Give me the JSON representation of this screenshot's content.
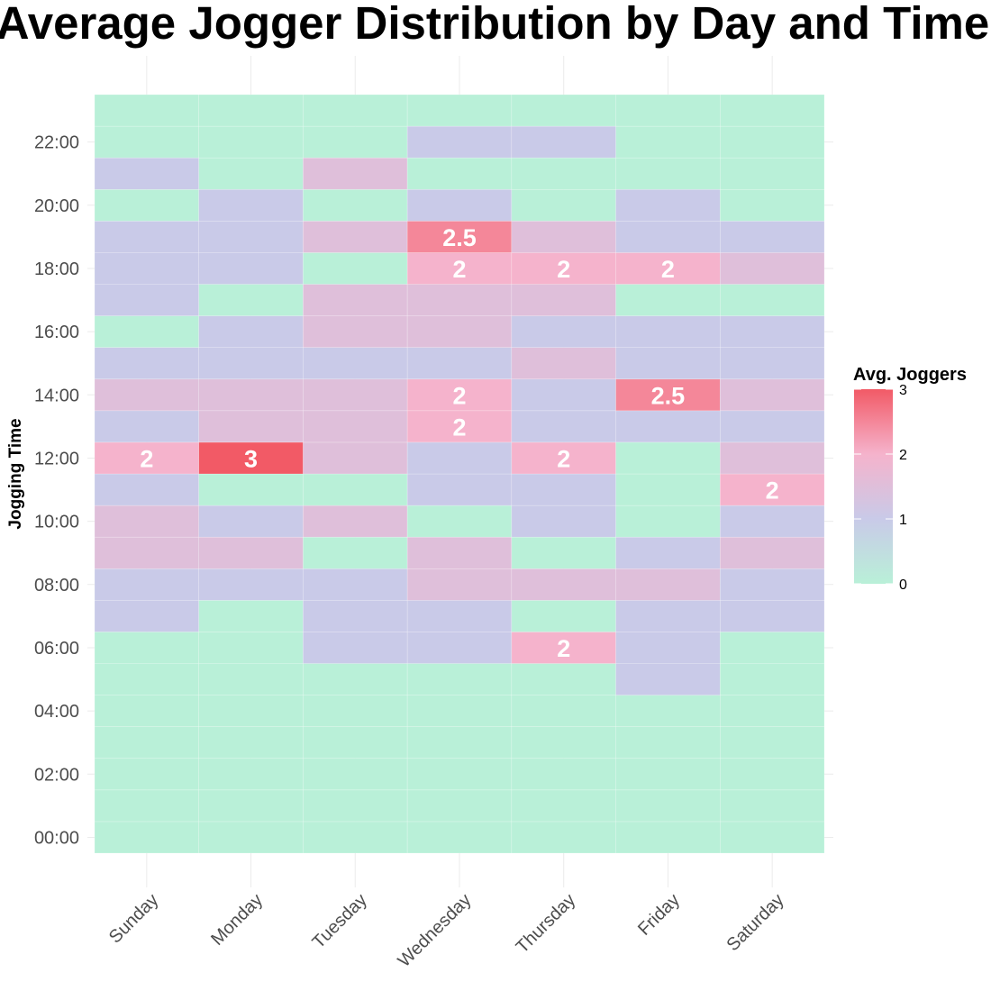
{
  "title": "Average Jogger Distribution by Day and Time",
  "chart_data": {
    "type": "heatmap",
    "title": "Average Jogger Distribution by Day and Time",
    "xlabel": "",
    "ylabel": "Jogging Time",
    "x_categories": [
      "Sunday",
      "Monday",
      "Tuesday",
      "Wednesday",
      "Thursday",
      "Friday",
      "Saturday"
    ],
    "y_hours": [
      0,
      1,
      2,
      3,
      4,
      5,
      6,
      7,
      8,
      9,
      10,
      11,
      12,
      13,
      14,
      15,
      16,
      17,
      18,
      19,
      20,
      21,
      22,
      23
    ],
    "y_tick_labels": [
      "00:00",
      "02:00",
      "04:00",
      "06:00",
      "08:00",
      "10:00",
      "12:00",
      "14:00",
      "16:00",
      "18:00",
      "20:00",
      "22:00"
    ],
    "legend": {
      "title": "Avg. Joggers",
      "placement": "right",
      "range": [
        0,
        3
      ],
      "ticks": [
        "0",
        "1",
        "2",
        "3"
      ],
      "colors": {
        "0": "#b9f0d8",
        "1": "#c9cae8",
        "2": "#f5b3cc",
        "3": "#f25a66"
      }
    },
    "values": [
      [
        0,
        0,
        0,
        0,
        0,
        0,
        0,
        1,
        1,
        1.5,
        1.5,
        1,
        2,
        1,
        1.5,
        1,
        0,
        1,
        1,
        1,
        0,
        1,
        0,
        0
      ],
      [
        0,
        0,
        0,
        0,
        0,
        0,
        0,
        0,
        1,
        1.5,
        1,
        0,
        3,
        1.5,
        1.5,
        1,
        1,
        0,
        1,
        1,
        1,
        0,
        0,
        0
      ],
      [
        0,
        0,
        0,
        0,
        0,
        0,
        1,
        1,
        1,
        0,
        1.5,
        0,
        1.5,
        1.5,
        1.5,
        1,
        1.5,
        1.5,
        0,
        1.5,
        0,
        1.5,
        0,
        0
      ],
      [
        0,
        0,
        0,
        0,
        0,
        0,
        1,
        1,
        1.5,
        1.5,
        0,
        1,
        1,
        2,
        2,
        1,
        1.5,
        1.5,
        2,
        2.5,
        1,
        0,
        1,
        0
      ],
      [
        0,
        0,
        0,
        0,
        0,
        0,
        2,
        0,
        1.5,
        0,
        1,
        1,
        2,
        1,
        1,
        1.5,
        1,
        1.5,
        2,
        1.5,
        0,
        0,
        1,
        0
      ],
      [
        0,
        0,
        0,
        0,
        0,
        1,
        1,
        1,
        1.5,
        1,
        0,
        0,
        0,
        1,
        2.5,
        1,
        1,
        0,
        2,
        1,
        1,
        0,
        0,
        0
      ],
      [
        0,
        0,
        0,
        0,
        0,
        0,
        0,
        1,
        1,
        1.5,
        1,
        2,
        1.5,
        1,
        1.5,
        1,
        1,
        0,
        1.5,
        1,
        0,
        0,
        0,
        0
      ]
    ],
    "labeled_cells": [
      {
        "day": "Sunday",
        "hour": 12,
        "text": "2"
      },
      {
        "day": "Monday",
        "hour": 12,
        "text": "3"
      },
      {
        "day": "Wednesday",
        "hour": 19,
        "text": "2.5"
      },
      {
        "day": "Wednesday",
        "hour": 18,
        "text": "2"
      },
      {
        "day": "Wednesday",
        "hour": 14,
        "text": "2"
      },
      {
        "day": "Wednesday",
        "hour": 13,
        "text": "2"
      },
      {
        "day": "Thursday",
        "hour": 18,
        "text": "2"
      },
      {
        "day": "Thursday",
        "hour": 12,
        "text": "2"
      },
      {
        "day": "Thursday",
        "hour": 6,
        "text": "2"
      },
      {
        "day": "Friday",
        "hour": 18,
        "text": "2"
      },
      {
        "day": "Friday",
        "hour": 14,
        "text": "2.5"
      },
      {
        "day": "Saturday",
        "hour": 11,
        "text": "2"
      }
    ]
  }
}
